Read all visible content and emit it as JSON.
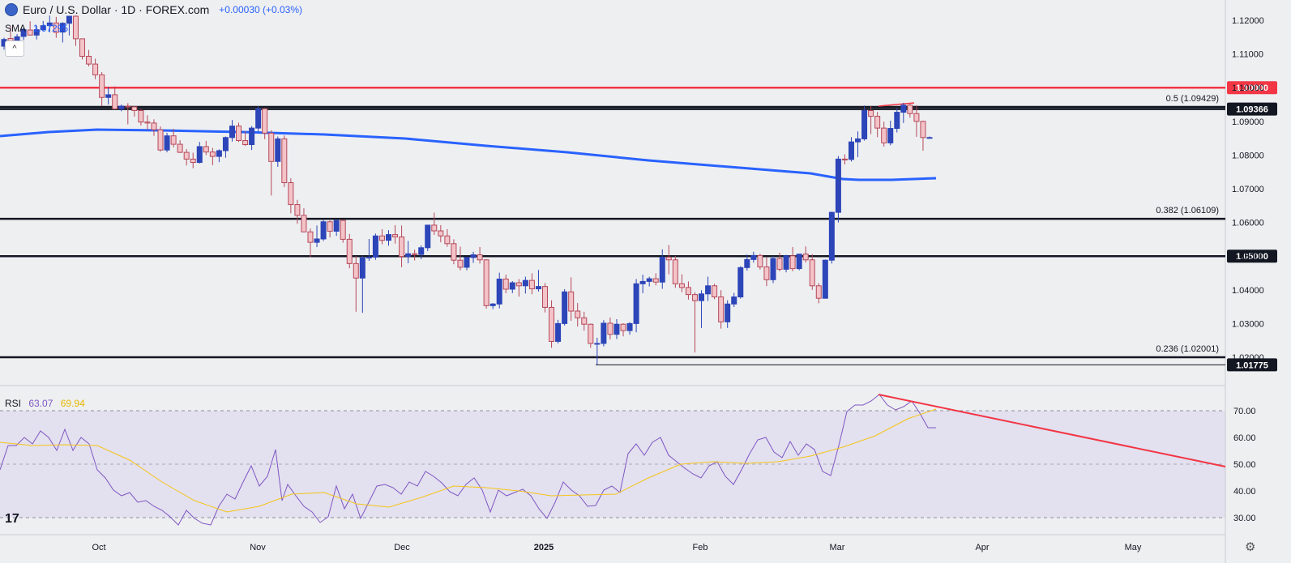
{
  "header": {
    "title": "Euro / U.S. Dollar · 1D · FOREX.com",
    "change": "+0.00030 (+0.03%)",
    "sma_label": "SMA",
    "sma_value": "1.07295",
    "collapse_glyph": "^"
  },
  "rsi_legend": {
    "label": "RSI",
    "value": "63.07",
    "ma_value": "69.94"
  },
  "logo_text": "17",
  "settings_icon": "gear-icon",
  "colors": {
    "up": "#2c45b8",
    "down": "#f3c3c8",
    "down_border": "#b5495a",
    "sma": "#2962ff",
    "red_line": "#f23645",
    "rsi": "#7e57c2",
    "rsi_ma": "#f5c518"
  },
  "chart_data": {
    "type": "candlestick",
    "symbol": "EUR/USD",
    "interval": "1D",
    "price_axis": {
      "ticks": [
        "1.12000",
        "1.11000",
        "1.10000",
        "1.09000",
        "1.08000",
        "1.07000",
        "1.06000",
        "1.05000",
        "1.04000",
        "1.03000",
        "1.02000"
      ],
      "ylim": [
        1.0165,
        1.1265
      ]
    },
    "time_axis": {
      "ticks": [
        "Oct",
        "Nov",
        "Dec",
        "2025",
        "Feb",
        "Mar",
        "Apr",
        "May"
      ]
    },
    "levels": [
      {
        "price": 1.1,
        "label": "1.10000",
        "color": "#f23645",
        "tag": true
      },
      {
        "price": 1.09429,
        "label": "0.5 (1.09429)",
        "color": "#131722",
        "tag": false
      },
      {
        "price": 1.09366,
        "label": "1.09366",
        "color": "#131722",
        "tag": true
      },
      {
        "price": 1.06109,
        "label": "0.382 (1.06109)",
        "color": "#131722",
        "tag": false
      },
      {
        "price": 1.05,
        "label": "1.05000",
        "color": "#131722",
        "tag": true
      },
      {
        "price": 1.02001,
        "label": "0.236 (1.02001)",
        "color": "#131722",
        "tag": false
      },
      {
        "price": 1.01775,
        "label": "1.01775",
        "color": "#131722",
        "tag": true
      }
    ],
    "candles": [
      [
        1.1123,
        1.1148,
        1.1113,
        1.1143
      ],
      [
        1.1146,
        1.1182,
        1.1119,
        1.1134
      ],
      [
        1.1136,
        1.1159,
        1.1107,
        1.1151
      ],
      [
        1.1152,
        1.1177,
        1.1141,
        1.1172
      ],
      [
        1.1171,
        1.1197,
        1.1156,
        1.1156
      ],
      [
        1.1156,
        1.1184,
        1.1143,
        1.1172
      ],
      [
        1.1172,
        1.1198,
        1.1169,
        1.1184
      ],
      [
        1.1184,
        1.1214,
        1.1164,
        1.1192
      ],
      [
        1.1192,
        1.121,
        1.1148,
        1.1164
      ],
      [
        1.1165,
        1.1194,
        1.1134,
        1.1191
      ],
      [
        1.1191,
        1.1212,
        1.1155,
        1.1212
      ],
      [
        1.1212,
        1.1214,
        1.1124,
        1.1145
      ],
      [
        1.1145,
        1.1145,
        1.1084,
        1.1093
      ],
      [
        1.1093,
        1.1112,
        1.1063,
        1.107
      ],
      [
        1.107,
        1.1086,
        1.1025,
        1.1038
      ],
      [
        1.1038,
        1.1046,
        1.0945,
        1.0971
      ],
      [
        1.0971,
        1.1002,
        1.095,
        1.0979
      ],
      [
        1.0979,
        1.1004,
        1.0935,
        1.0937
      ],
      [
        1.0937,
        1.095,
        1.093,
        1.0945
      ],
      [
        1.0945,
        1.0954,
        1.0891,
        1.0943
      ],
      [
        1.0943,
        1.0945,
        1.0914,
        1.0932
      ],
      [
        1.0932,
        1.0936,
        1.0888,
        1.0898
      ],
      [
        1.0898,
        1.0918,
        1.0875,
        1.0895
      ],
      [
        1.0895,
        1.0906,
        1.0857,
        1.0875
      ],
      [
        1.0875,
        1.0885,
        1.081,
        1.0815
      ],
      [
        1.0815,
        1.0866,
        1.0808,
        1.0857
      ],
      [
        1.0857,
        1.0878,
        1.0823,
        1.0832
      ],
      [
        1.0832,
        1.0844,
        1.0806,
        1.0808
      ],
      [
        1.0808,
        1.0818,
        1.0769,
        1.0788
      ],
      [
        1.0788,
        1.0807,
        1.0761,
        1.0778
      ],
      [
        1.0778,
        1.0839,
        1.0775,
        1.0825
      ],
      [
        1.0825,
        1.0842,
        1.08,
        1.0809
      ],
      [
        1.0809,
        1.0821,
        1.077,
        1.0796
      ],
      [
        1.0796,
        1.0817,
        1.0779,
        1.0813
      ],
      [
        1.0813,
        1.0855,
        1.0792,
        1.0852
      ],
      [
        1.0852,
        1.0904,
        1.084,
        1.0886
      ],
      [
        1.0886,
        1.0896,
        1.0839,
        1.0843
      ],
      [
        1.0843,
        1.087,
        1.0827,
        1.0831
      ],
      [
        1.0831,
        1.0886,
        1.0815,
        1.088
      ],
      [
        1.088,
        1.0945,
        1.087,
        1.0937
      ],
      [
        1.0937,
        1.0939,
        1.0847,
        1.0865
      ],
      [
        1.0865,
        1.0874,
        1.068,
        1.0781
      ],
      [
        1.0781,
        1.0855,
        1.0765,
        1.0848
      ],
      [
        1.0848,
        1.0858,
        1.0705,
        1.0718
      ],
      [
        1.0718,
        1.0731,
        1.0627,
        1.0653
      ],
      [
        1.0653,
        1.0667,
        1.0596,
        1.0621
      ],
      [
        1.0621,
        1.0642,
        1.0572,
        1.0572
      ],
      [
        1.0572,
        1.0582,
        1.0497,
        1.0541
      ],
      [
        1.0541,
        1.0591,
        1.0527,
        1.0551
      ],
      [
        1.0551,
        1.0609,
        1.0545,
        1.0602
      ],
      [
        1.0602,
        1.0606,
        1.0556,
        1.0574
      ],
      [
        1.0574,
        1.0606,
        1.056,
        1.0606
      ],
      [
        1.0606,
        1.0608,
        1.054,
        1.055
      ],
      [
        1.055,
        1.0566,
        1.0464,
        1.0478
      ],
      [
        1.0478,
        1.05,
        1.0335,
        1.0435
      ],
      [
        1.0435,
        1.0502,
        1.0332,
        1.0495
      ],
      [
        1.0495,
        1.0551,
        1.0486,
        1.0497
      ],
      [
        1.0497,
        1.0567,
        1.0489,
        1.056
      ],
      [
        1.056,
        1.058,
        1.0535,
        1.0547
      ],
      [
        1.0547,
        1.0577,
        1.0531,
        1.0564
      ],
      [
        1.0564,
        1.0592,
        1.0537,
        1.0557
      ],
      [
        1.0557,
        1.0591,
        1.0467,
        1.0499
      ],
      [
        1.0499,
        1.0545,
        1.0479,
        1.0507
      ],
      [
        1.0507,
        1.0519,
        1.0487,
        1.0505
      ],
      [
        1.0505,
        1.0532,
        1.0491,
        1.0525
      ],
      [
        1.0525,
        1.0593,
        1.0515,
        1.0592
      ],
      [
        1.0592,
        1.0629,
        1.0563,
        1.0575
      ],
      [
        1.0575,
        1.0592,
        1.0541,
        1.056
      ],
      [
        1.056,
        1.058,
        1.0528,
        1.0537
      ],
      [
        1.0537,
        1.055,
        1.0476,
        1.0488
      ],
      [
        1.0488,
        1.0528,
        1.0458,
        1.0467
      ],
      [
        1.0467,
        1.0498,
        1.0458,
        1.0496
      ],
      [
        1.0496,
        1.0513,
        1.048,
        1.0504
      ],
      [
        1.0504,
        1.0527,
        1.0478,
        1.0489
      ],
      [
        1.0489,
        1.0491,
        1.0344,
        1.0353
      ],
      [
        1.0353,
        1.0361,
        1.0343,
        1.0358
      ],
      [
        1.0358,
        1.0451,
        1.0345,
        1.0432
      ],
      [
        1.0432,
        1.0445,
        1.039,
        1.0402
      ],
      [
        1.0402,
        1.0426,
        1.039,
        1.0421
      ],
      [
        1.0421,
        1.0432,
        1.038,
        1.0412
      ],
      [
        1.0412,
        1.0439,
        1.0389,
        1.0428
      ],
      [
        1.0428,
        1.0449,
        1.0387,
        1.0403
      ],
      [
        1.0403,
        1.0459,
        1.0395,
        1.041
      ],
      [
        1.041,
        1.042,
        1.0333,
        1.0348
      ],
      [
        1.0348,
        1.0369,
        1.0228,
        1.0247
      ],
      [
        1.0247,
        1.0311,
        1.0241,
        1.03
      ],
      [
        1.03,
        1.0402,
        1.0294,
        1.0394
      ],
      [
        1.0394,
        1.0437,
        1.0308,
        1.0337
      ],
      [
        1.0337,
        1.0361,
        1.0291,
        1.0317
      ],
      [
        1.0317,
        1.0335,
        1.0279,
        1.0298
      ],
      [
        1.0298,
        1.03,
        1.0228,
        1.0241
      ],
      [
        1.0241,
        1.0258,
        1.0178,
        1.0241
      ],
      [
        1.0241,
        1.031,
        1.0232,
        1.0301
      ],
      [
        1.0301,
        1.0318,
        1.0253,
        1.0268
      ],
      [
        1.0268,
        1.0313,
        1.0254,
        1.0298
      ],
      [
        1.0298,
        1.0301,
        1.0262,
        1.0279
      ],
      [
        1.0279,
        1.0304,
        1.0267,
        1.03
      ],
      [
        1.03,
        1.0432,
        1.0274,
        1.0418
      ],
      [
        1.0418,
        1.0445,
        1.039,
        1.0425
      ],
      [
        1.0425,
        1.0439,
        1.041,
        1.0433
      ],
      [
        1.0433,
        1.0449,
        1.0413,
        1.0423
      ],
      [
        1.0423,
        1.052,
        1.0403,
        1.0497
      ],
      [
        1.0497,
        1.0533,
        1.0446,
        1.0489
      ],
      [
        1.0489,
        1.0501,
        1.0406,
        1.0418
      ],
      [
        1.0418,
        1.0446,
        1.0393,
        1.0407
      ],
      [
        1.0407,
        1.0425,
        1.0371,
        1.0386
      ],
      [
        1.0386,
        1.0393,
        1.0214,
        1.0368
      ],
      [
        1.0368,
        1.0399,
        1.0287,
        1.0388
      ],
      [
        1.0388,
        1.0439,
        1.0367,
        1.0412
      ],
      [
        1.0412,
        1.0418,
        1.0372,
        1.0379
      ],
      [
        1.0379,
        1.0399,
        1.0285,
        1.0305
      ],
      [
        1.0305,
        1.0369,
        1.0287,
        1.0358
      ],
      [
        1.0358,
        1.0391,
        1.0349,
        1.0379
      ],
      [
        1.0379,
        1.047,
        1.0374,
        1.0466
      ],
      [
        1.0466,
        1.0505,
        1.0457,
        1.049
      ],
      [
        1.049,
        1.0513,
        1.0481,
        1.0502
      ],
      [
        1.0502,
        1.0507,
        1.046,
        1.0468
      ],
      [
        1.0468,
        1.0496,
        1.0411,
        1.043
      ],
      [
        1.043,
        1.0501,
        1.042,
        1.0493
      ],
      [
        1.0493,
        1.051,
        1.0455,
        1.0461
      ],
      [
        1.0461,
        1.0504,
        1.0452,
        1.0501
      ],
      [
        1.0501,
        1.0527,
        1.0455,
        1.0463
      ],
      [
        1.0463,
        1.0507,
        1.0458,
        1.0506
      ],
      [
        1.0506,
        1.0529,
        1.0481,
        1.0489
      ],
      [
        1.0489,
        1.0506,
        1.04,
        1.0412
      ],
      [
        1.0412,
        1.042,
        1.036,
        1.0375
      ],
      [
        1.0375,
        1.049,
        1.0374,
        1.0488
      ],
      [
        1.0488,
        1.0632,
        1.0478,
        1.063
      ],
      [
        1.063,
        1.0797,
        1.06,
        1.0788
      ],
      [
        1.0788,
        1.0802,
        1.0772,
        1.0787
      ],
      [
        1.0787,
        1.0853,
        1.0781,
        1.0839
      ],
      [
        1.0839,
        1.087,
        1.0794,
        1.0848
      ],
      [
        1.0848,
        1.0947,
        1.0843,
        1.0932
      ],
      [
        1.0932,
        1.0946,
        1.0862,
        1.0915
      ],
      [
        1.0915,
        1.0928,
        1.0853,
        1.088
      ],
      [
        1.088,
        1.0899,
        1.0825,
        1.0836
      ],
      [
        1.0836,
        1.0902,
        1.0829,
        1.0879
      ],
      [
        1.0879,
        1.0939,
        1.0867,
        1.0927
      ],
      [
        1.0927,
        1.0955,
        1.0895,
        1.0948
      ],
      [
        1.0948,
        1.0952,
        1.0911,
        1.0923
      ],
      [
        1.0923,
        1.0948,
        1.0854,
        1.09
      ],
      [
        1.09,
        1.0902,
        1.0813,
        1.0852
      ],
      [
        1.0852,
        1.0855,
        1.0849,
        1.0852
      ]
    ],
    "sma_value": 1.07295,
    "rsi_panel": {
      "ticks": [
        "70.00",
        "60.00",
        "50.00",
        "40.00",
        "30.00"
      ],
      "ylim": [
        25,
        77
      ],
      "band": [
        30,
        70
      ],
      "midline": 50,
      "rsi_value": 63.07,
      "rsi_ma_value": 69.94
    }
  }
}
